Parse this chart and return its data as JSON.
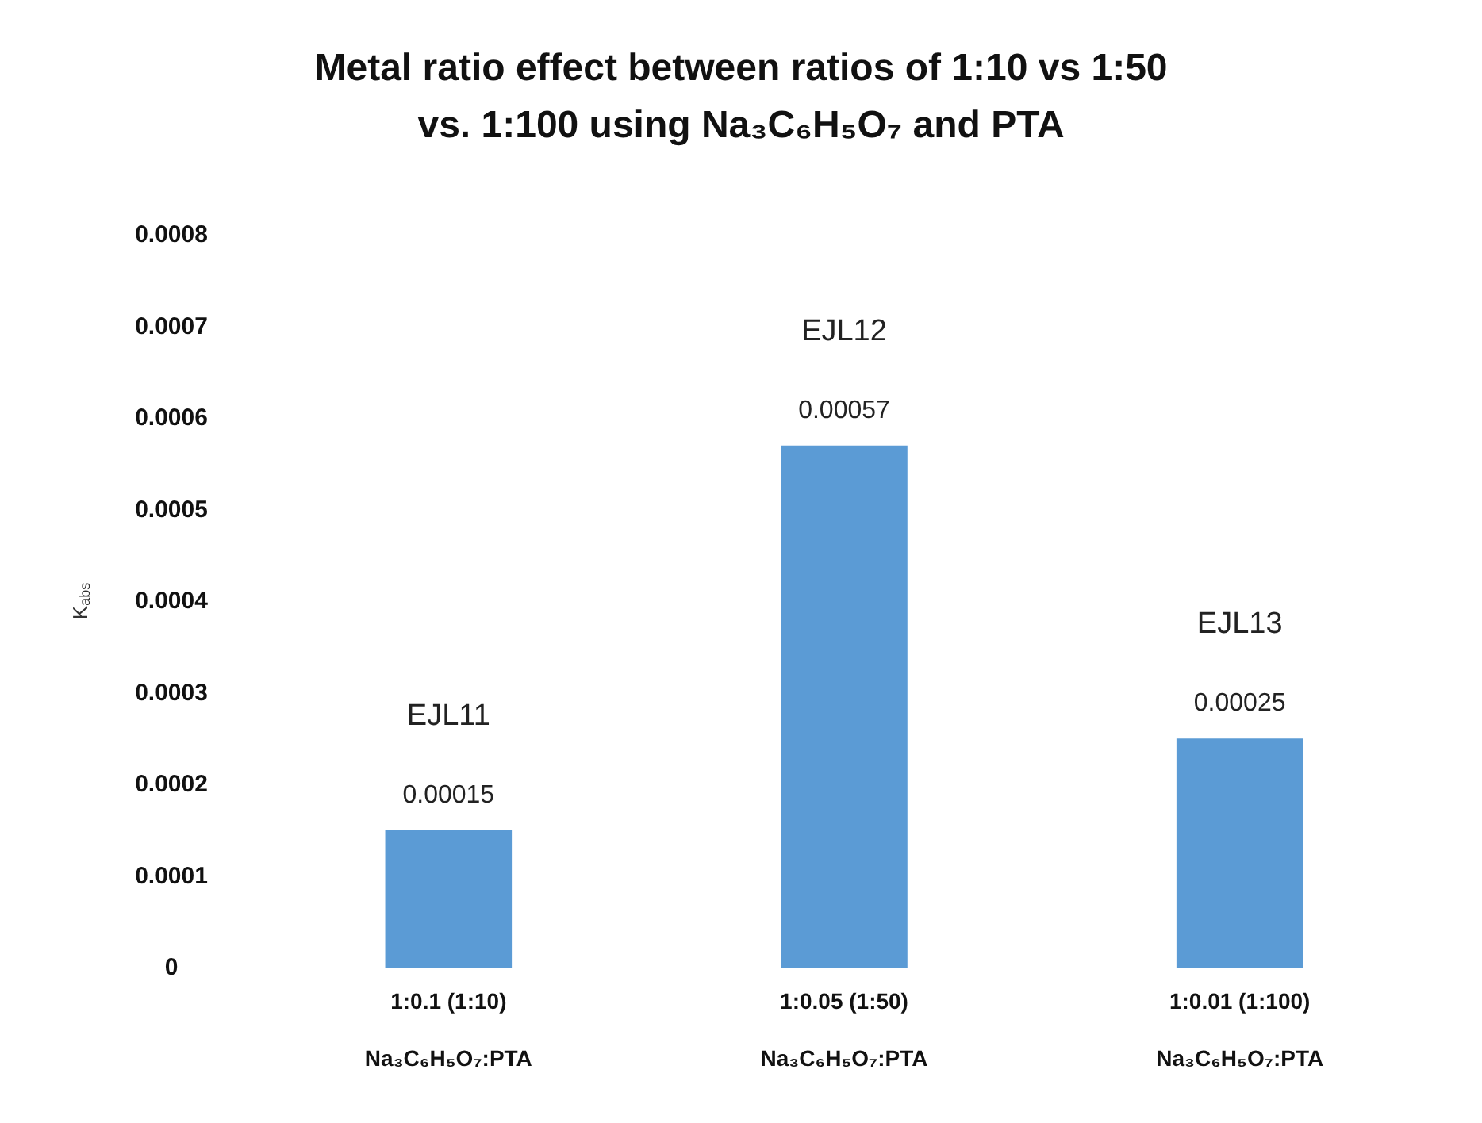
{
  "chart_data": {
    "type": "bar",
    "title": "Metal ratio effect between ratios of 1:10 vs 1:50\nvs. 1:100 using Na₃C₆H₅O₇ and PTA",
    "ylabel": "K$_{abs}$",
    "categories": [
      "1:0.1 (1:10)\n\nNa₃C₆H₅O₇:PTA",
      "1:0.05 (1:50)\n\nNa₃C₆H₅O₇:PTA",
      "1:0.01 (1:100)\n\nNa₃C₆H₅O₇:PTA"
    ],
    "values": [
      0.00015,
      0.00057,
      0.00025
    ],
    "color": "#5b9bd5",
    "data_labels": true,
    "ylim": [
      0,
      0.0008
    ],
    "yticks": [
      0,
      0.0001,
      0.0002,
      0.0003,
      0.0004,
      0.0005,
      0.0006,
      0.0007,
      0.0008
    ],
    "grid": false,
    "annotations": [
      "EJL11",
      "EJL12",
      "EJL13"
    ]
  }
}
